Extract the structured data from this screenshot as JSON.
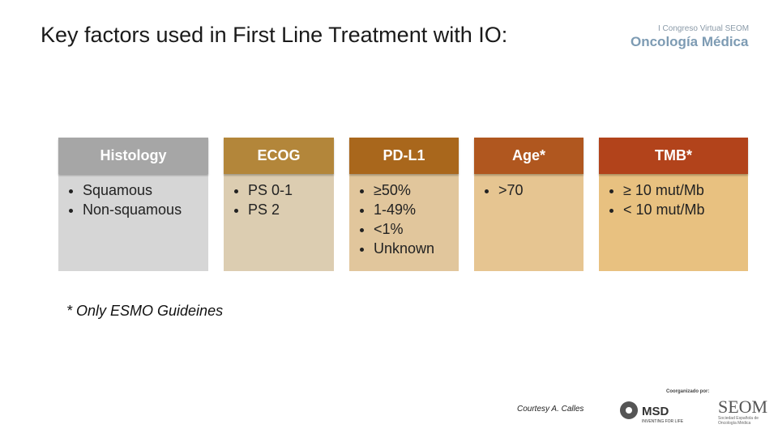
{
  "title": "Key factors used in First Line Treatment with IO:",
  "columns": [
    {
      "header": "Histology",
      "items": [
        "Squamous",
        "Non-squamous"
      ]
    },
    {
      "header": "ECOG",
      "items": [
        "PS 0-1",
        "PS 2"
      ]
    },
    {
      "header": "PD-L1",
      "items": [
        "≥50%",
        "1-49%",
        "<1%",
        "Unknown"
      ]
    },
    {
      "header": "Age*",
      "items": [
        ">70"
      ]
    },
    {
      "header": "TMB*",
      "items": [
        "≥ 10 mut/Mb",
        "< 10 mut/Mb"
      ]
    }
  ],
  "footnote": "* Only ESMO Guideines",
  "courtesy": "Courtesy A. Calles",
  "logos": {
    "congress_line1": "I Congreso Virtual SEOM",
    "congress_line2": "Oncología Médica",
    "coorganized": "Coorganizado por:",
    "msd": "MSD",
    "msd_tagline": "INVENTING FOR LIFE",
    "seom": "SEOM",
    "seom_tagline": "Sociedad Española de Oncología Médica"
  }
}
